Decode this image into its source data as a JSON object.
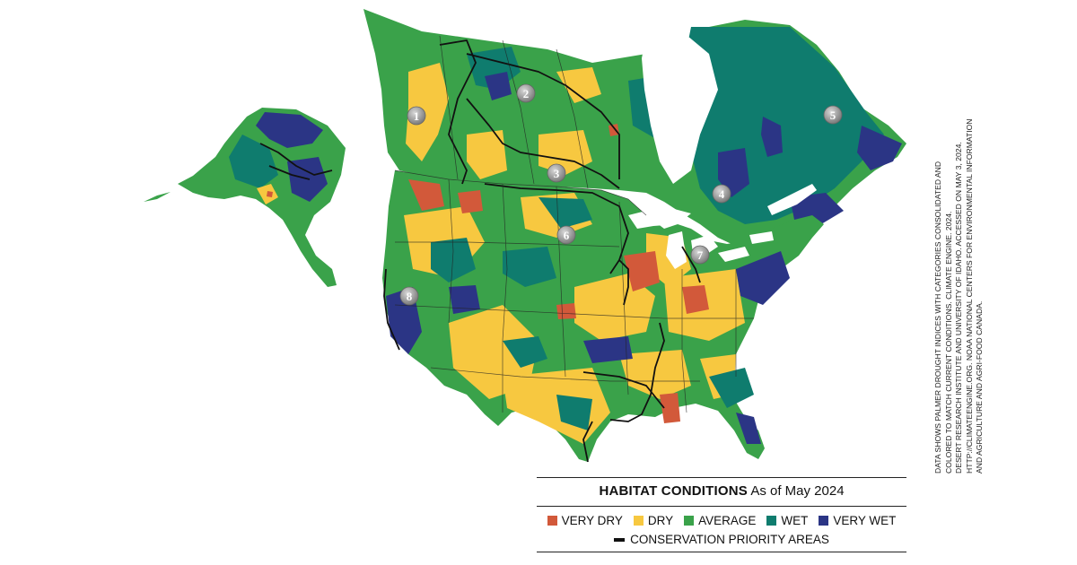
{
  "legend": {
    "title": "HABITAT CONDITIONS",
    "date": "As of May 2024",
    "categories": [
      {
        "label": "VERY DRY",
        "color": "#d2593a"
      },
      {
        "label": "DRY",
        "color": "#f7c840"
      },
      {
        "label": "AVERAGE",
        "color": "#3aa24a"
      },
      {
        "label": "WET",
        "color": "#0f7c6e"
      },
      {
        "label": "VERY WET",
        "color": "#2b3585"
      }
    ],
    "line_label": "CONSERVATION PRIORITY AREAS",
    "line_color": "#111111"
  },
  "source_note": [
    "DATA SHOWS PALMER DROUGHT INDICES WITH CATEGORIES CONSOLIDATED AND",
    "COLORED TO MATCH CURRENT CONDITIONS. CLIMATE ENGINE. 2024.",
    "DESERT RESEARCH INSTITUTE AND UNIVERSITY OF IDAHO. ACCESSED ON MAY 3, 2024.",
    "HTTP://CLIMATEENGINE.ORG. NOAA NATIONAL CENTERS FOR ENVIRONMENTAL INFORMATION",
    "AND AGRICULTURE AND AGRI-FOOD CANADA."
  ],
  "markers": [
    "1",
    "2",
    "3",
    "4",
    "5",
    "6",
    "7",
    "8"
  ]
}
